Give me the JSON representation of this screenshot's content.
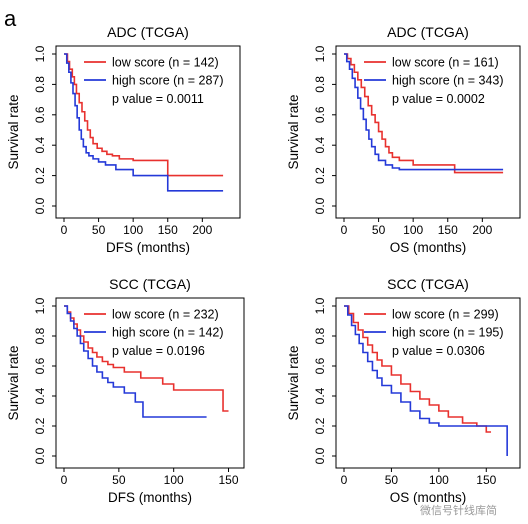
{
  "panel_label": "a",
  "watermark": "微信号针线库简",
  "chart_data": [
    {
      "type": "line",
      "title": "ADC (TCGA)",
      "xlabel": "DFS (months)",
      "ylabel": "Survival rate",
      "xlim": [
        0,
        240
      ],
      "ylim": [
        0,
        1
      ],
      "xticks": [
        0,
        50,
        100,
        150,
        200
      ],
      "yticks": [
        0.0,
        0.2,
        0.4,
        0.6,
        0.8,
        1.0
      ],
      "legend_position": "top-right",
      "annotation": "p value = 0.0011",
      "series": [
        {
          "name": "low score (n = 142)",
          "color": "#e8312e",
          "x": [
            0,
            5,
            8,
            12,
            15,
            18,
            22,
            26,
            30,
            34,
            38,
            42,
            48,
            55,
            62,
            70,
            80,
            100,
            150,
            230
          ],
          "y": [
            1.0,
            0.95,
            0.9,
            0.85,
            0.8,
            0.74,
            0.68,
            0.62,
            0.56,
            0.5,
            0.45,
            0.41,
            0.38,
            0.36,
            0.34,
            0.33,
            0.31,
            0.3,
            0.2,
            0.2
          ]
        },
        {
          "name": "high score (n = 287)",
          "color": "#2439d8",
          "x": [
            0,
            4,
            7,
            10,
            13,
            16,
            19,
            22,
            25,
            28,
            32,
            36,
            42,
            50,
            60,
            75,
            100,
            150,
            230
          ],
          "y": [
            1.0,
            0.94,
            0.88,
            0.81,
            0.74,
            0.66,
            0.58,
            0.5,
            0.44,
            0.39,
            0.35,
            0.33,
            0.31,
            0.29,
            0.27,
            0.24,
            0.2,
            0.1,
            0.1
          ]
        }
      ]
    },
    {
      "type": "line",
      "title": "ADC (TCGA)",
      "xlabel": "OS (months)",
      "ylabel": "Survival rate",
      "xlim": [
        0,
        240
      ],
      "ylim": [
        0,
        1
      ],
      "xticks": [
        0,
        50,
        100,
        150,
        200
      ],
      "yticks": [
        0.0,
        0.2,
        0.4,
        0.6,
        0.8,
        1.0
      ],
      "legend_position": "top-right",
      "annotation": "p value = 0.0002",
      "series": [
        {
          "name": "low score (n = 161)",
          "color": "#e8312e",
          "x": [
            0,
            5,
            10,
            15,
            20,
            25,
            30,
            35,
            40,
            45,
            50,
            55,
            60,
            65,
            70,
            80,
            100,
            160,
            230
          ],
          "y": [
            1.0,
            0.97,
            0.93,
            0.88,
            0.83,
            0.78,
            0.72,
            0.66,
            0.6,
            0.55,
            0.49,
            0.44,
            0.39,
            0.35,
            0.32,
            0.3,
            0.27,
            0.22,
            0.22
          ]
        },
        {
          "name": "high score (n = 343)",
          "color": "#2439d8",
          "x": [
            0,
            4,
            8,
            12,
            16,
            20,
            24,
            28,
            32,
            36,
            40,
            45,
            50,
            60,
            70,
            80,
            100,
            160,
            230
          ],
          "y": [
            1.0,
            0.95,
            0.9,
            0.84,
            0.78,
            0.71,
            0.64,
            0.57,
            0.5,
            0.44,
            0.39,
            0.34,
            0.3,
            0.27,
            0.25,
            0.24,
            0.24,
            0.24,
            0.24
          ]
        }
      ]
    },
    {
      "type": "line",
      "title": "SCC (TCGA)",
      "xlabel": "DFS (months)",
      "ylabel": "Survival rate",
      "xlim": [
        0,
        155
      ],
      "ylim": [
        0,
        1
      ],
      "xticks": [
        0,
        50,
        100,
        150
      ],
      "yticks": [
        0.0,
        0.2,
        0.4,
        0.6,
        0.8,
        1.0
      ],
      "legend_position": "top-right",
      "annotation": "p value = 0.0196",
      "series": [
        {
          "name": "low score (n = 232)",
          "color": "#e8312e",
          "x": [
            0,
            3,
            6,
            9,
            12,
            15,
            18,
            22,
            26,
            30,
            35,
            40,
            45,
            55,
            70,
            90,
            100,
            140,
            145,
            150
          ],
          "y": [
            1.0,
            0.96,
            0.92,
            0.88,
            0.84,
            0.8,
            0.76,
            0.72,
            0.69,
            0.66,
            0.63,
            0.61,
            0.59,
            0.56,
            0.52,
            0.48,
            0.44,
            0.44,
            0.3,
            0.3
          ]
        },
        {
          "name": "high score (n = 142)",
          "color": "#2439d8",
          "x": [
            0,
            3,
            6,
            9,
            12,
            15,
            18,
            22,
            26,
            30,
            35,
            40,
            45,
            55,
            65,
            72,
            100,
            130
          ],
          "y": [
            1.0,
            0.95,
            0.9,
            0.85,
            0.8,
            0.75,
            0.7,
            0.65,
            0.6,
            0.56,
            0.52,
            0.49,
            0.46,
            0.42,
            0.36,
            0.26,
            0.26,
            0.26
          ]
        }
      ]
    },
    {
      "type": "line",
      "title": "SCC (TCGA)",
      "xlabel": "OS (months)",
      "ylabel": "Survival rate",
      "xlim": [
        0,
        175
      ],
      "ylim": [
        0,
        1
      ],
      "xticks": [
        0,
        50,
        100,
        150
      ],
      "yticks": [
        0.0,
        0.2,
        0.4,
        0.6,
        0.8,
        1.0
      ],
      "legend_position": "top-right",
      "annotation": "p value = 0.0306",
      "series": [
        {
          "name": "low score (n = 299)",
          "color": "#e8312e",
          "x": [
            0,
            5,
            10,
            15,
            20,
            25,
            30,
            35,
            40,
            50,
            60,
            70,
            80,
            90,
            100,
            110,
            125,
            140,
            150,
            155
          ],
          "y": [
            1.0,
            0.95,
            0.89,
            0.84,
            0.79,
            0.74,
            0.69,
            0.64,
            0.6,
            0.54,
            0.48,
            0.43,
            0.38,
            0.34,
            0.3,
            0.26,
            0.22,
            0.2,
            0.16,
            0.16
          ]
        },
        {
          "name": "high score (n = 195)",
          "color": "#2439d8",
          "x": [
            0,
            4,
            8,
            12,
            16,
            20,
            25,
            30,
            35,
            40,
            50,
            60,
            70,
            80,
            90,
            100,
            130,
            170,
            172
          ],
          "y": [
            1.0,
            0.94,
            0.87,
            0.81,
            0.75,
            0.69,
            0.63,
            0.57,
            0.52,
            0.47,
            0.42,
            0.36,
            0.3,
            0.25,
            0.22,
            0.2,
            0.2,
            0.2,
            0.0
          ]
        }
      ]
    }
  ]
}
